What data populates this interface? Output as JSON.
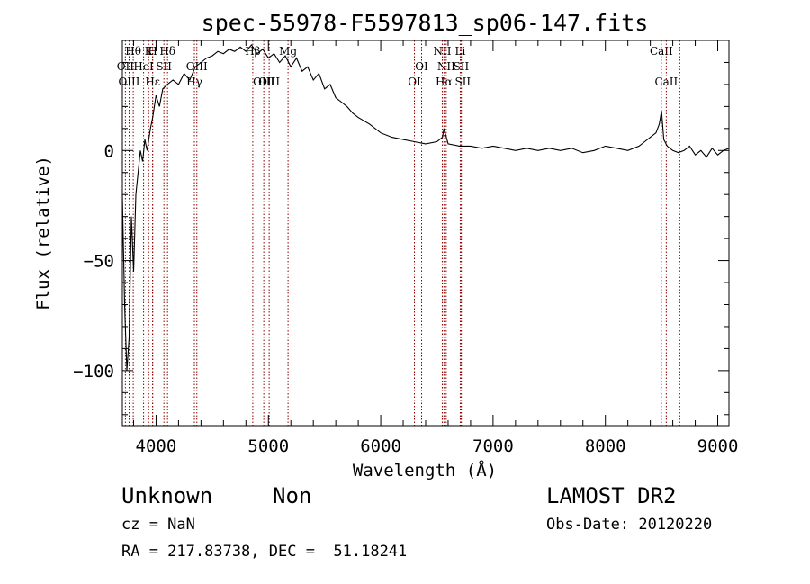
{
  "chart_data": {
    "type": "line",
    "title": "spec-55978-F5597813_sp06-147.fits",
    "xlabel": "Wavelength (Å)",
    "ylabel": "Flux (relative)",
    "xlim": [
      3700,
      9100
    ],
    "ylim": [
      -125,
      50
    ],
    "x_ticks": [
      4000,
      5000,
      6000,
      7000,
      8000,
      9000
    ],
    "y_ticks": [
      0,
      -50,
      -100
    ],
    "grid": false,
    "line_color": "#000000",
    "marker_color": "#8b0000",
    "spectrum": {
      "x": [
        3700,
        3720,
        3740,
        3760,
        3780,
        3800,
        3820,
        3840,
        3860,
        3880,
        3900,
        3920,
        3950,
        3970,
        4000,
        4030,
        4060,
        4100,
        4150,
        4200,
        4250,
        4300,
        4350,
        4400,
        4450,
        4500,
        4550,
        4600,
        4650,
        4700,
        4750,
        4800,
        4850,
        4900,
        4950,
        5000,
        5050,
        5100,
        5150,
        5200,
        5250,
        5300,
        5350,
        5400,
        5450,
        5500,
        5550,
        5600,
        5650,
        5700,
        5750,
        5800,
        5900,
        6000,
        6100,
        6200,
        6300,
        6400,
        6500,
        6550,
        6563,
        6600,
        6700,
        6800,
        6900,
        7000,
        7100,
        7200,
        7300,
        7400,
        7500,
        7600,
        7700,
        7800,
        7900,
        8000,
        8100,
        8200,
        8300,
        8350,
        8400,
        8450,
        8480,
        8500,
        8520,
        8550,
        8600,
        8650,
        8700,
        8750,
        8800,
        8850,
        8900,
        8950,
        9000,
        9050,
        9100
      ],
      "y": [
        -20,
        -70,
        -100,
        -85,
        -30,
        -55,
        -20,
        -10,
        0,
        -5,
        5,
        0,
        10,
        15,
        25,
        20,
        28,
        30,
        32,
        30,
        35,
        32,
        38,
        40,
        42,
        43,
        45,
        44,
        46,
        45,
        47,
        45,
        48,
        44,
        46,
        42,
        44,
        40,
        43,
        38,
        42,
        36,
        38,
        32,
        35,
        28,
        30,
        24,
        22,
        20,
        17,
        15,
        12,
        8,
        6,
        5,
        4,
        3,
        4,
        6,
        10,
        3,
        2,
        2,
        1,
        2,
        1,
        0,
        1,
        0,
        1,
        0,
        1,
        -1,
        0,
        2,
        1,
        0,
        2,
        4,
        6,
        8,
        12,
        18,
        5,
        2,
        0,
        -1,
        0,
        2,
        -2,
        0,
        -3,
        1,
        -2,
        0,
        1
      ]
    },
    "lines": [
      {
        "label": "Hθ",
        "x": 3797,
        "row": 1
      },
      {
        "label": "K",
        "x": 3934,
        "row": 1
      },
      {
        "label": "H",
        "x": 3969,
        "row": 1
      },
      {
        "label": "Hδ",
        "x": 4102,
        "row": 1
      },
      {
        "label": "OII",
        "x": 3727,
        "row": 2
      },
      {
        "label": "HeI",
        "x": 3889,
        "row": 2
      },
      {
        "label": "SII",
        "x": 4070,
        "row": 2
      },
      {
        "label": "OIII",
        "x": 4363,
        "row": 2
      },
      {
        "label": "OIII",
        "x": 3760,
        "row": 3
      },
      {
        "label": "Hε",
        "x": 3970,
        "row": 3
      },
      {
        "label": "Hγ",
        "x": 4341,
        "row": 3
      },
      {
        "label": "Hβ",
        "x": 4861,
        "row": 1
      },
      {
        "label": "Mg",
        "x": 5175,
        "row": 1
      },
      {
        "label": "OIII",
        "x": 4959,
        "row": 3
      },
      {
        "label": "OIII",
        "x": 5007,
        "row": 3
      },
      {
        "label": "OI",
        "x": 6300,
        "row": 3
      },
      {
        "label": "OI",
        "x": 6364,
        "row": 2
      },
      {
        "label": "NII",
        "x": 6548,
        "row": 1
      },
      {
        "label": "Li",
        "x": 6708,
        "row": 1
      },
      {
        "label": "NII",
        "x": 6583,
        "row": 2
      },
      {
        "label": "SII",
        "x": 6716,
        "row": 2
      },
      {
        "label": "Hα",
        "x": 6563,
        "row": 3
      },
      {
        "label": "SII",
        "x": 6731,
        "row": 3
      },
      {
        "label": "CaII",
        "x": 8498,
        "row": 1
      },
      {
        "label": "CaII",
        "x": 8542,
        "row": 3
      },
      {
        "label": "",
        "x": 8662,
        "row": 0
      }
    ]
  },
  "footer": {
    "object_class": "Unknown",
    "subclass": "Non",
    "survey": "LAMOST DR2",
    "cz": "cz = NaN",
    "obs_date": "Obs-Date: 20120220",
    "coords": "RA = 217.83738, DEC =  51.18241"
  }
}
